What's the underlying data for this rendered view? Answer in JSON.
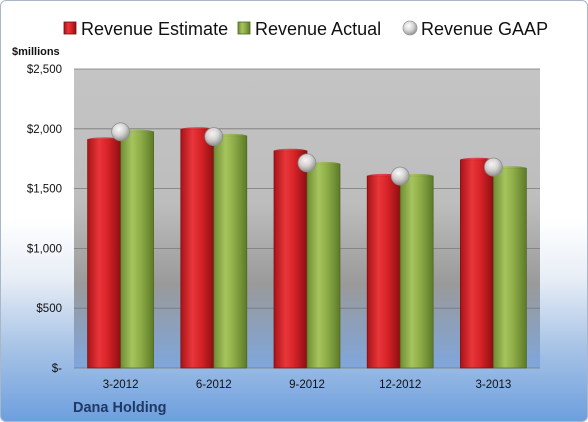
{
  "chart_data": {
    "type": "bar",
    "categories": [
      "3-2012",
      "6-2012",
      "9-2012",
      "12-2012",
      "3-2013"
    ],
    "series": [
      {
        "name": "Revenue Estimate",
        "kind": "bar",
        "color": "#e3262b",
        "values": [
          1910,
          1995,
          1815,
          1605,
          1740
        ]
      },
      {
        "name": "Revenue Actual",
        "kind": "bar",
        "color": "#8fb04a",
        "values": [
          1975,
          1940,
          1705,
          1605,
          1670
        ]
      },
      {
        "name": "Revenue GAAP",
        "kind": "marker",
        "color": "#c8c8c8",
        "values": [
          1975,
          1935,
          1715,
          1605,
          1680
        ]
      }
    ],
    "ylabel": "$millions",
    "ylim": [
      0,
      2500
    ],
    "yticks": [
      {
        "value": 0,
        "label": "$-"
      },
      {
        "value": 500,
        "label": "$500"
      },
      {
        "value": 1000,
        "label": "$1,000"
      },
      {
        "value": 1500,
        "label": "$1,500"
      },
      {
        "value": 2000,
        "label": "$2,000"
      },
      {
        "value": 2500,
        "label": "$2,500"
      }
    ],
    "grid": true,
    "legend_position": "top"
  },
  "company": "Dana Holding"
}
